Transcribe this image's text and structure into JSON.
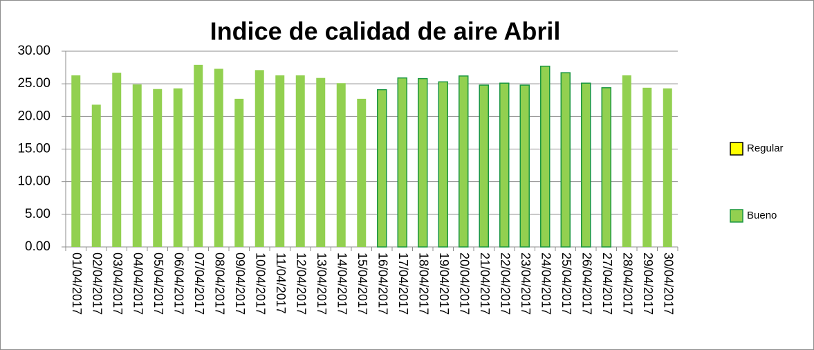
{
  "chart_data": {
    "type": "bar",
    "title": "Indice de calidad de aire Abril",
    "categories": [
      "01/04/2017",
      "02/04/2017",
      "03/04/2017",
      "04/04/2017",
      "05/04/2017",
      "06/04/2017",
      "07/04/2017",
      "08/04/2017",
      "09/04/2017",
      "10/04/2017",
      "11/04/2017",
      "12/04/2017",
      "13/04/2017",
      "14/04/2017",
      "15/04/2017",
      "16/04/2017",
      "17/04/2017",
      "18/04/2017",
      "19/04/2017",
      "20/04/2017",
      "21/04/2017",
      "22/04/2017",
      "23/04/2017",
      "24/04/2017",
      "25/04/2017",
      "26/04/2017",
      "27/04/2017",
      "28/04/2017",
      "29/04/2017",
      "30/04/2017"
    ],
    "series": [
      {
        "name": "Regular",
        "color": "#ffff00",
        "edgecolor": "#000000",
        "values": [
          null,
          null,
          null,
          null,
          null,
          null,
          null,
          null,
          null,
          null,
          null,
          null,
          null,
          null,
          null,
          null,
          null,
          null,
          null,
          null,
          null,
          null,
          null,
          null,
          null,
          null,
          null,
          null,
          null,
          null
        ]
      },
      {
        "name": "Bueno",
        "color": "#92d050",
        "edgecolor": "#1a9641",
        "values": [
          26.3,
          21.8,
          26.7,
          24.9,
          24.2,
          24.3,
          27.9,
          27.3,
          22.7,
          27.1,
          26.3,
          26.3,
          25.9,
          25.1,
          22.7,
          24.1,
          25.9,
          25.8,
          25.3,
          26.2,
          24.8,
          25.1,
          24.8,
          27.7,
          26.7,
          25.1,
          24.4,
          26.3,
          24.4,
          24.3
        ],
        "edgecolors": [
          null,
          null,
          null,
          null,
          null,
          null,
          null,
          null,
          null,
          null,
          null,
          null,
          null,
          null,
          null,
          "#1a9641",
          "#1a9641",
          "#1a9641",
          "#1a9641",
          "#1a9641",
          "#1a9641",
          "#1a9641",
          "#1a9641",
          "#1a9641",
          "#1a9641",
          "#1a9641",
          "#1a9641",
          null,
          null,
          null
        ]
      }
    ],
    "ylim": [
      0,
      30
    ],
    "yticks": [
      {
        "value": 0,
        "label": "0.00"
      },
      {
        "value": 5,
        "label": "5.00"
      },
      {
        "value": 10,
        "label": "10.00"
      },
      {
        "value": 15,
        "label": "15.00"
      },
      {
        "value": 20,
        "label": "20.00"
      },
      {
        "value": 25,
        "label": "25.00"
      },
      {
        "value": 30,
        "label": "30.00"
      }
    ],
    "grid": true,
    "legend": "right"
  }
}
